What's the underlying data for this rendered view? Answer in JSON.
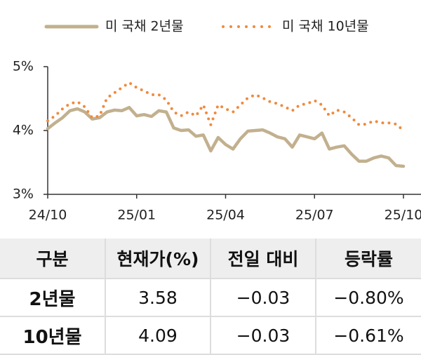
{
  "chart_data": {
    "type": "line",
    "categories": [
      "24/10",
      null,
      null,
      null,
      null,
      null,
      null,
      null,
      null,
      null,
      null,
      null,
      "25/01",
      null,
      null,
      null,
      null,
      null,
      null,
      null,
      null,
      null,
      null,
      null,
      "25/04",
      null,
      null,
      null,
      null,
      null,
      null,
      null,
      null,
      null,
      null,
      null,
      "25/07",
      null,
      null,
      null,
      null,
      null,
      null,
      null,
      null,
      null,
      null,
      null,
      "25/10"
    ],
    "series": [
      {
        "name": "미 국채 2년물",
        "color": "#c2b08e",
        "style": "solid",
        "values": [
          4.03,
          4.12,
          4.2,
          4.31,
          4.34,
          4.29,
          4.18,
          4.2,
          4.29,
          4.32,
          4.31,
          4.36,
          4.23,
          4.25,
          4.22,
          4.31,
          4.29,
          4.04,
          4.0,
          4.01,
          3.91,
          3.93,
          3.68,
          3.89,
          3.78,
          3.71,
          3.87,
          3.99,
          4.0,
          4.01,
          3.96,
          3.9,
          3.87,
          3.74,
          3.93,
          3.9,
          3.87,
          3.96,
          3.71,
          3.74,
          3.76,
          3.63,
          3.52,
          3.52,
          3.57,
          3.6,
          3.57,
          3.45,
          3.44
        ]
      },
      {
        "name": "미 국채 10년물",
        "color": "#f08a3c",
        "style": "dotted",
        "values": [
          4.15,
          4.23,
          4.34,
          4.42,
          4.45,
          4.37,
          4.2,
          4.23,
          4.51,
          4.59,
          4.67,
          4.75,
          4.67,
          4.62,
          4.56,
          4.56,
          4.48,
          4.29,
          4.23,
          4.29,
          4.23,
          4.4,
          4.09,
          4.4,
          4.34,
          4.29,
          4.4,
          4.51,
          4.56,
          4.51,
          4.45,
          4.42,
          4.37,
          4.31,
          4.4,
          4.42,
          4.47,
          4.4,
          4.23,
          4.32,
          4.29,
          4.2,
          4.09,
          4.1,
          4.15,
          4.12,
          4.12,
          4.1,
          4.0
        ]
      }
    ],
    "ylim": [
      3,
      5
    ],
    "yticks": [
      {
        "value": 3,
        "label": "3%"
      },
      {
        "value": 4,
        "label": "4%"
      },
      {
        "value": 5,
        "label": "5%"
      }
    ],
    "legend": "top"
  },
  "table": {
    "header": [
      "구분",
      "현재가(%)",
      "전일 대비",
      "등락률"
    ],
    "rows": [
      [
        "2년물",
        "3.58",
        "−0.03",
        "−0.80%"
      ],
      [
        "10년물",
        "4.09",
        "−0.03",
        "−0.61%"
      ]
    ]
  }
}
